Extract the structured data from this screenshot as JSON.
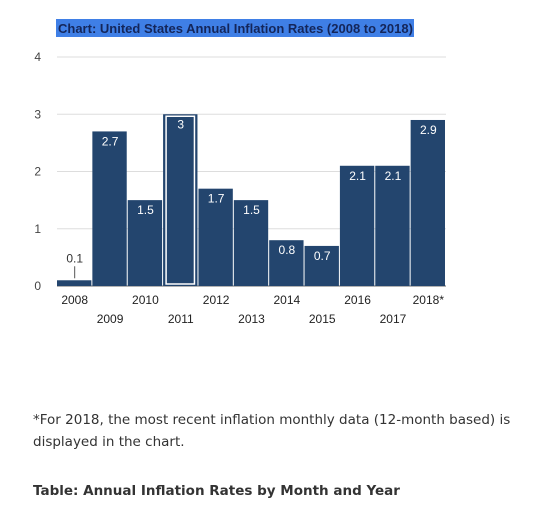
{
  "chart_data": {
    "type": "bar",
    "title": "Chart: United States Annual Inflation Rates (2008 to 2018)",
    "categories": [
      "2008",
      "2009",
      "2010",
      "2011",
      "2012",
      "2013",
      "2014",
      "2015",
      "2016",
      "2017",
      "2018*"
    ],
    "values": [
      0.1,
      2.7,
      1.5,
      3,
      1.7,
      1.5,
      0.8,
      0.7,
      2.1,
      2.1,
      2.9
    ],
    "data_labels": [
      "0.1",
      "2.7",
      "1.5",
      "3",
      "1.7",
      "1.5",
      "0.8",
      "0.7",
      "2.1",
      "2.1",
      "2.9"
    ],
    "highlighted_category": "2011",
    "yticks": [
      "0",
      "1",
      "2",
      "3",
      "4"
    ],
    "ylim": [
      0,
      4
    ],
    "xlabel": "",
    "ylabel": "",
    "grid": true,
    "legend": "none",
    "colors": {
      "bar": "#23456e",
      "highlight_outline": "#ffffff",
      "title_highlight": "#3f7fe6",
      "title_text": "#14265a"
    }
  },
  "footnote": "*For 2018, the most recent inflation monthly data (12-month based) is displayed in the chart.",
  "table_title": "Table: Annual Inflation Rates by Month and Year"
}
